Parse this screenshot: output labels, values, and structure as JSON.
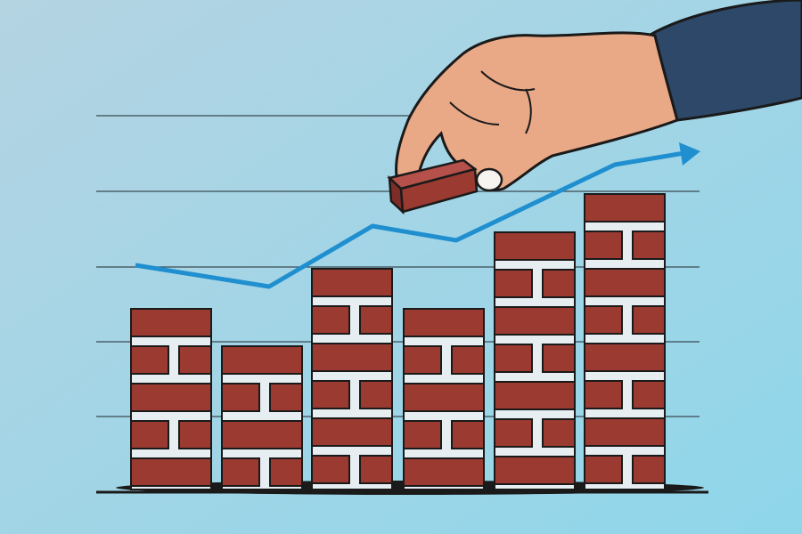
{
  "colors": {
    "background_light": "#b4d4e2",
    "background_dark": "#8fd6ea",
    "brick": "#9a3a31",
    "mortar": "#e6eef1",
    "outline": "#1a1a1a",
    "trend_line": "#1f8fd0",
    "skin": "#e9a886",
    "sleeve": "#2d4868",
    "gridline": "#3a4a52"
  },
  "icons": {
    "trend": "arrow-up-right-icon"
  }
}
